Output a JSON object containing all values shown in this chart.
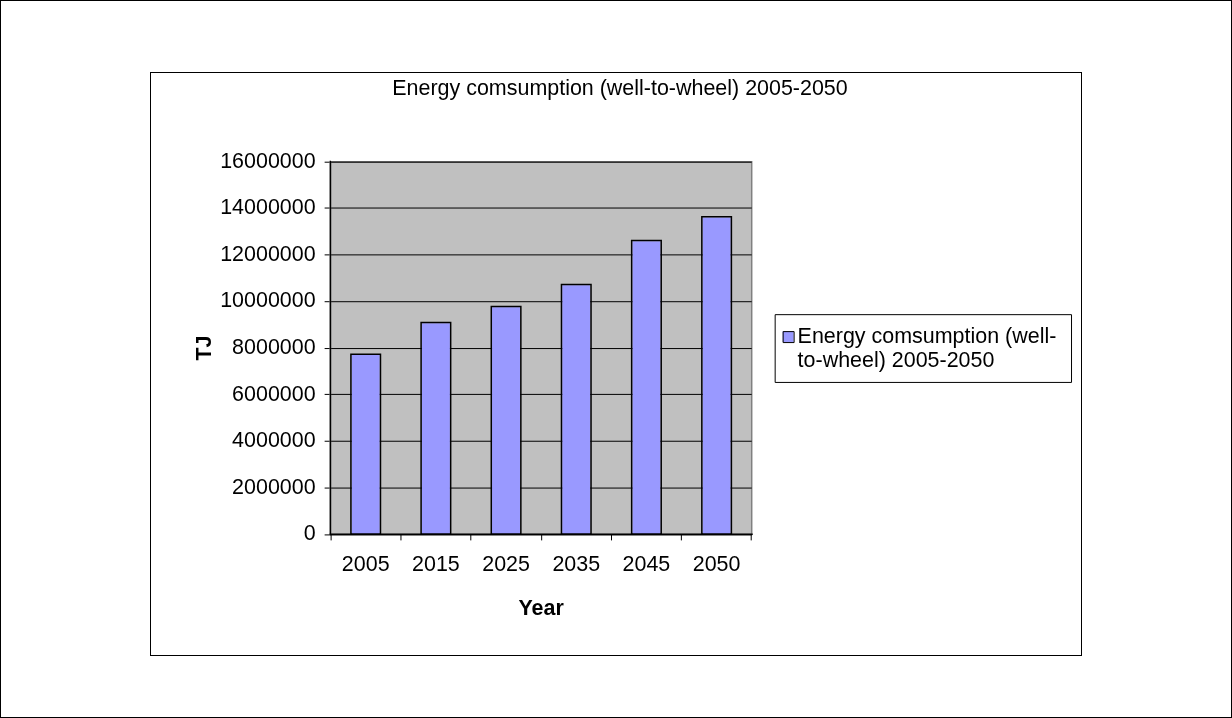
{
  "chart_data": {
    "type": "bar",
    "title": "Energy comsumption (well-to-wheel) 2005-2050",
    "xlabel": "Year",
    "ylabel": "TJ",
    "categories": [
      "2005",
      "2015",
      "2025",
      "2035",
      "2045",
      "2050"
    ],
    "series": [
      {
        "name": "Energy comsumption (well-to-wheel) 2005-2050",
        "color": "#9999ff",
        "values": [
          7700000,
          9070000,
          9750000,
          10700000,
          12580000,
          13600000
        ]
      }
    ],
    "ylim": [
      0,
      16000000
    ],
    "yticks": [
      0,
      2000000,
      4000000,
      6000000,
      8000000,
      10000000,
      12000000,
      14000000,
      16000000
    ],
    "grid": "y",
    "legend": "right"
  }
}
